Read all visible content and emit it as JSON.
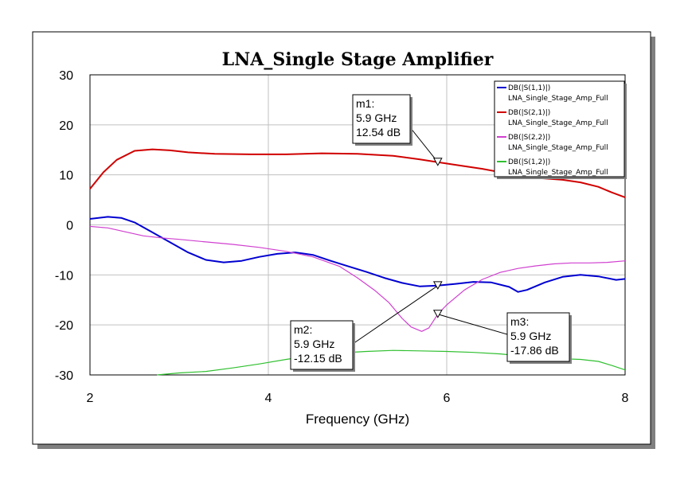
{
  "chart_data": {
    "type": "line",
    "title": "LNA_Single Stage Amplifier",
    "xlabel": "Frequency (GHz)",
    "ylabel": "",
    "xlim": [
      2,
      8
    ],
    "ylim": [
      -30,
      30
    ],
    "x_ticks": [
      "2",
      "4",
      "6",
      "8"
    ],
    "y_ticks": [
      "30",
      "20",
      "10",
      "0",
      "-10",
      "-20",
      "-30"
    ],
    "grid": true,
    "legend_position": "top-right",
    "series": [
      {
        "name": "DB(|S(1,1)|)",
        "source": "LNA_Single_Stage_Amp_Full",
        "color": "#0000d0",
        "points": [
          [
            2.0,
            1.2
          ],
          [
            2.2,
            1.6
          ],
          [
            2.35,
            1.4
          ],
          [
            2.5,
            0.5
          ],
          [
            2.7,
            -1.5
          ],
          [
            2.9,
            -3.5
          ],
          [
            3.1,
            -5.5
          ],
          [
            3.3,
            -7.0
          ],
          [
            3.5,
            -7.5
          ],
          [
            3.7,
            -7.2
          ],
          [
            3.9,
            -6.4
          ],
          [
            4.1,
            -5.8
          ],
          [
            4.3,
            -5.5
          ],
          [
            4.5,
            -6.0
          ],
          [
            4.7,
            -7.2
          ],
          [
            4.9,
            -8.3
          ],
          [
            5.1,
            -9.4
          ],
          [
            5.3,
            -10.6
          ],
          [
            5.5,
            -11.6
          ],
          [
            5.7,
            -12.3
          ],
          [
            5.9,
            -12.15
          ],
          [
            6.1,
            -11.8
          ],
          [
            6.3,
            -11.4
          ],
          [
            6.5,
            -11.5
          ],
          [
            6.7,
            -12.4
          ],
          [
            6.8,
            -13.4
          ],
          [
            6.9,
            -13.0
          ],
          [
            7.1,
            -11.5
          ],
          [
            7.3,
            -10.4
          ],
          [
            7.5,
            -10.0
          ],
          [
            7.7,
            -10.3
          ],
          [
            7.9,
            -11.0
          ],
          [
            8.0,
            -10.8
          ]
        ]
      },
      {
        "name": "DB(|S(2,1)|)",
        "source": "LNA_Single_Stage_Amp_Full",
        "color": "#d00000",
        "points": [
          [
            2.0,
            7.2
          ],
          [
            2.15,
            10.5
          ],
          [
            2.3,
            13.0
          ],
          [
            2.5,
            14.8
          ],
          [
            2.7,
            15.1
          ],
          [
            2.9,
            14.9
          ],
          [
            3.1,
            14.5
          ],
          [
            3.4,
            14.2
          ],
          [
            3.8,
            14.1
          ],
          [
            4.2,
            14.1
          ],
          [
            4.6,
            14.3
          ],
          [
            5.0,
            14.2
          ],
          [
            5.4,
            13.8
          ],
          [
            5.7,
            13.1
          ],
          [
            5.9,
            12.54
          ],
          [
            6.1,
            12.0
          ],
          [
            6.4,
            11.2
          ],
          [
            6.7,
            10.2
          ],
          [
            7.0,
            9.4
          ],
          [
            7.3,
            9.0
          ],
          [
            7.5,
            8.5
          ],
          [
            7.7,
            7.6
          ],
          [
            7.85,
            6.5
          ],
          [
            8.0,
            5.5
          ]
        ]
      },
      {
        "name": "DB(|S(2,2)|)",
        "source": "LNA_Single_Stage_Amp_Full",
        "color": "#d040d0",
        "points": [
          [
            2.0,
            -0.3
          ],
          [
            2.2,
            -0.6
          ],
          [
            2.4,
            -1.4
          ],
          [
            2.6,
            -2.2
          ],
          [
            2.8,
            -2.6
          ],
          [
            3.0,
            -2.9
          ],
          [
            3.3,
            -3.4
          ],
          [
            3.6,
            -3.9
          ],
          [
            3.9,
            -4.5
          ],
          [
            4.2,
            -5.3
          ],
          [
            4.5,
            -6.4
          ],
          [
            4.8,
            -8.3
          ],
          [
            5.0,
            -10.6
          ],
          [
            5.2,
            -13.2
          ],
          [
            5.35,
            -15.5
          ],
          [
            5.5,
            -18.7
          ],
          [
            5.6,
            -20.4
          ],
          [
            5.72,
            -21.3
          ],
          [
            5.8,
            -20.6
          ],
          [
            5.9,
            -17.86
          ],
          [
            6.0,
            -16.0
          ],
          [
            6.2,
            -13.0
          ],
          [
            6.4,
            -10.9
          ],
          [
            6.6,
            -9.5
          ],
          [
            6.8,
            -8.7
          ],
          [
            7.0,
            -8.2
          ],
          [
            7.2,
            -7.8
          ],
          [
            7.4,
            -7.6
          ],
          [
            7.6,
            -7.6
          ],
          [
            7.8,
            -7.5
          ],
          [
            8.0,
            -7.2
          ]
        ]
      },
      {
        "name": "DB(|S(1,2)|)",
        "source": "LNA_Single_Stage_Amp_Full",
        "color": "#30c030",
        "points": [
          [
            2.75,
            -30.0
          ],
          [
            3.0,
            -29.6
          ],
          [
            3.3,
            -29.3
          ],
          [
            3.6,
            -28.6
          ],
          [
            3.9,
            -27.8
          ],
          [
            4.2,
            -26.9
          ],
          [
            4.5,
            -26.1
          ],
          [
            4.8,
            -25.6
          ],
          [
            5.1,
            -25.3
          ],
          [
            5.4,
            -25.1
          ],
          [
            5.7,
            -25.2
          ],
          [
            6.0,
            -25.3
          ],
          [
            6.3,
            -25.5
          ],
          [
            6.6,
            -25.8
          ],
          [
            6.9,
            -26.3
          ],
          [
            7.2,
            -26.7
          ],
          [
            7.5,
            -26.9
          ],
          [
            7.7,
            -27.3
          ],
          [
            7.85,
            -28.1
          ],
          [
            8.0,
            -29.0
          ]
        ]
      }
    ],
    "markers": [
      {
        "label": "m1:",
        "freq": "5.9 GHz",
        "value": "12.54 dB",
        "x": 5.9,
        "y": 12.54
      },
      {
        "label": "m2:",
        "freq": "5.9 GHz",
        "value": "-12.15 dB",
        "x": 5.9,
        "y": -12.15
      },
      {
        "label": "m3:",
        "freq": "5.9 GHz",
        "value": "-17.86 dB",
        "x": 5.9,
        "y": -17.86
      }
    ]
  }
}
